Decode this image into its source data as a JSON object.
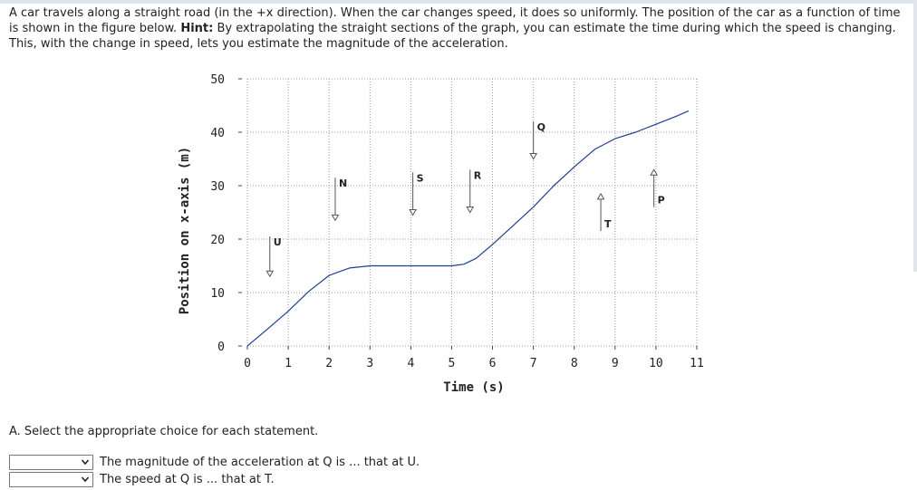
{
  "intro": {
    "text_before_hint": "A car travels along a straight road (in the +x direction). When the car changes speed, it does so uniformly. The position of the car as a function of time is shown in the figure below. ",
    "hint_label": "Hint:",
    "text_after_hint": " By extrapolating the straight sections of the graph, you can estimate the time during which the speed is changing. This, with the change in speed, lets you estimate the magnitude of the acceleration."
  },
  "chart_data": {
    "type": "line",
    "xlabel": "Time (s)",
    "ylabel": "Position on x-axis (m)",
    "xlim": [
      0,
      11
    ],
    "ylim": [
      0,
      50
    ],
    "x_ticks": [
      "0",
      "1",
      "2",
      "3",
      "4",
      "5",
      "6",
      "7",
      "8",
      "9",
      "10",
      "11"
    ],
    "y_ticks": [
      "0",
      "10",
      "20",
      "30",
      "40",
      "50"
    ],
    "grid": true,
    "series": [
      {
        "color": "#1f3f8f",
        "points": [
          [
            0,
            0
          ],
          [
            0.5,
            3.2
          ],
          [
            1,
            6.5
          ],
          [
            1.5,
            10.2
          ],
          [
            2,
            13.2
          ],
          [
            2.5,
            14.6
          ],
          [
            3,
            15
          ],
          [
            4,
            15
          ],
          [
            5,
            15
          ],
          [
            5.3,
            15.3
          ],
          [
            5.6,
            16.4
          ],
          [
            6,
            19
          ],
          [
            6.5,
            22.5
          ],
          [
            7,
            26
          ],
          [
            7.5,
            30
          ],
          [
            8,
            33.5
          ],
          [
            8.5,
            36.8
          ],
          [
            9,
            38.8
          ],
          [
            9.5,
            40
          ],
          [
            10,
            41.5
          ],
          [
            10.5,
            43
          ],
          [
            10.8,
            44
          ]
        ]
      }
    ],
    "annotations": [
      {
        "label": "U",
        "x": 0.55,
        "direction": "down",
        "y_top": 20.5,
        "y_tip": 13
      },
      {
        "label": "N",
        "x": 2.15,
        "direction": "down",
        "y_top": 31.5,
        "y_tip": 23.5
      },
      {
        "label": "S",
        "x": 4.05,
        "direction": "down",
        "y_top": 32.5,
        "y_tip": 24.5
      },
      {
        "label": "R",
        "x": 5.45,
        "direction": "down",
        "y_top": 33,
        "y_tip": 25
      },
      {
        "label": "Q",
        "x": 7.0,
        "direction": "down",
        "y_top": 42,
        "y_tip": 35
      },
      {
        "label": "T",
        "x": 8.65,
        "direction": "up",
        "y_top": 28.5,
        "y_tip": 21.5
      },
      {
        "label": "P",
        "x": 9.95,
        "direction": "up",
        "y_top": 33,
        "y_tip": 26
      }
    ]
  },
  "part_a": {
    "title": "A. Select the appropriate choice for each statement.",
    "statements": [
      {
        "selected": "",
        "text": "The magnitude of the acceleration at Q is ... that at U."
      },
      {
        "selected": "",
        "text": "The speed at Q is ... that at T."
      }
    ]
  },
  "colors": {
    "curve": "#1f3f8f",
    "grid": "#9a9a9a",
    "text": "#222222"
  }
}
